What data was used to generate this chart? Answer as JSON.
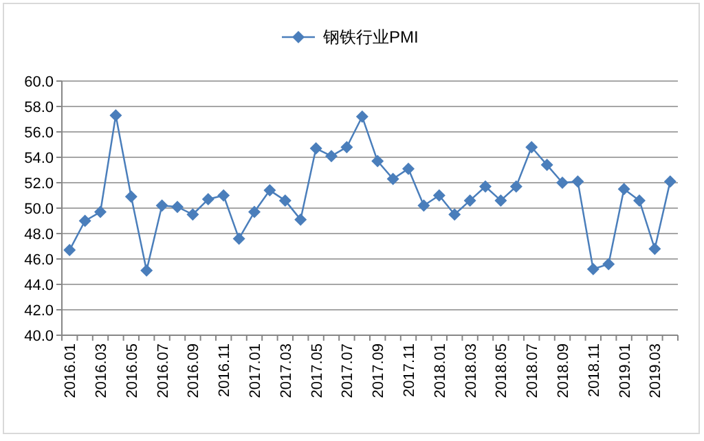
{
  "chart_data": {
    "type": "line",
    "categories": [
      "2016.01",
      null,
      "2016.03",
      null,
      "2016.05",
      null,
      "2016.07",
      null,
      "2016.09",
      null,
      "2016.11",
      null,
      "2017.01",
      null,
      "2017.03",
      null,
      "2017.05",
      null,
      "2017.07",
      null,
      "2017.09",
      null,
      "2017.11",
      null,
      "2018.01",
      null,
      "2018.03",
      null,
      "2018.05",
      null,
      "2018.07",
      null,
      "2018.09",
      null,
      "2018.11",
      null,
      "2019.01",
      null,
      "2019.03",
      null
    ],
    "series": [
      {
        "name": "钢铁行业PMI",
        "color": "#4a7ebb",
        "values": [
          46.7,
          49.0,
          49.7,
          57.3,
          50.9,
          45.1,
          50.2,
          50.1,
          49.5,
          50.7,
          51.0,
          47.6,
          49.7,
          51.4,
          50.6,
          49.1,
          54.7,
          54.1,
          54.8,
          57.2,
          53.7,
          52.3,
          53.1,
          50.2,
          51.0,
          49.5,
          50.6,
          51.7,
          50.6,
          51.7,
          54.8,
          53.4,
          52.0,
          52.1,
          45.2,
          45.6,
          51.5,
          50.6,
          46.8,
          52.1
        ]
      }
    ],
    "ylim": [
      40,
      60
    ],
    "yticks": [
      {
        "value": 40,
        "label": "40.0"
      },
      {
        "value": 42,
        "label": "42.0"
      },
      {
        "value": 44,
        "label": "44.0"
      },
      {
        "value": 46,
        "label": "46.0"
      },
      {
        "value": 48,
        "label": "48.0"
      },
      {
        "value": 50,
        "label": "50.0"
      },
      {
        "value": 52,
        "label": "52.0"
      },
      {
        "value": 54,
        "label": "54.0"
      },
      {
        "value": 56,
        "label": "56.0"
      },
      {
        "value": 58,
        "label": "58.0"
      },
      {
        "value": 60,
        "label": "60.0"
      }
    ],
    "grid": "y",
    "legend": "top",
    "marker": "diamond",
    "line_style": "solid"
  }
}
